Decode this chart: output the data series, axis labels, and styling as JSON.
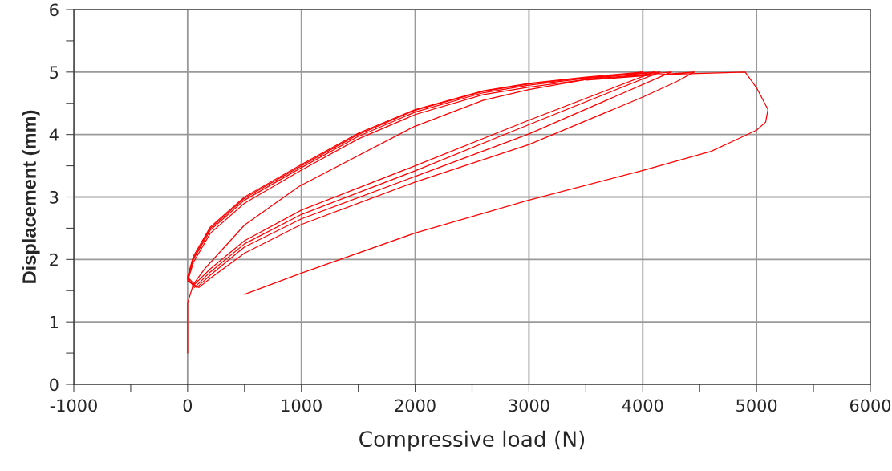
{
  "chart_data": {
    "type": "line",
    "xlabel": "Compressive load (N)",
    "ylabel": "Displacement (mm)",
    "xlim": [
      -1000,
      6000
    ],
    "ylim": [
      0,
      6
    ],
    "xticks": [
      -1000,
      {
        "value": -500,
        "label": null
      },
      0,
      {
        "value": 500,
        "label": null
      },
      1000,
      {
        "value": 1500,
        "label": null
      },
      2000,
      {
        "value": 2500,
        "label": null
      },
      3000,
      {
        "value": 3500,
        "label": null
      },
      4000,
      {
        "value": 4500,
        "label": null
      },
      5000,
      {
        "value": 5500,
        "label": null
      },
      6000
    ],
    "yticks": [
      0,
      {
        "value": 0.5,
        "label": null
      },
      1,
      {
        "value": 1.5,
        "label": null
      },
      2,
      {
        "value": 2.5,
        "label": null
      },
      3,
      {
        "value": 3.5,
        "label": null
      },
      4,
      {
        "value": 4.5,
        "label": null
      },
      5,
      {
        "value": 5.5,
        "label": null
      },
      6
    ],
    "grid": true,
    "marker": "none",
    "line_style": "solid",
    "series": [
      {
        "color": "#ff0000",
        "x": [
          0,
          0,
          50,
          150,
          500,
          980,
          1994,
          2600,
          3000,
          3500,
          4000
        ],
        "values": [
          0.5,
          1.3,
          1.6,
          1.85,
          2.55,
          3.17,
          4.13,
          4.55,
          4.72,
          4.88,
          5.0
        ]
      },
      {
        "color": "#ff0000",
        "x": [
          4000,
          3500,
          3000,
          2600,
          2000,
          1500,
          1000,
          500,
          200,
          50,
          0,
          60,
          200,
          500,
          1000,
          2000,
          3000,
          4100
        ],
        "values": [
          5.0,
          4.92,
          4.82,
          4.7,
          4.4,
          4.02,
          3.52,
          3.0,
          2.52,
          2.05,
          1.72,
          1.6,
          1.85,
          2.3,
          2.79,
          3.5,
          4.23,
          5.0
        ]
      },
      {
        "color": "#ff0000",
        "x": [
          4100,
          3500,
          3000,
          2600,
          2000,
          1500,
          1000,
          500,
          200,
          50,
          0,
          60,
          200,
          500,
          1000,
          2000,
          3000,
          4150
        ],
        "values": [
          5.0,
          4.91,
          4.81,
          4.69,
          4.39,
          4.0,
          3.5,
          2.98,
          2.5,
          2.02,
          1.7,
          1.55,
          1.8,
          2.25,
          2.72,
          3.42,
          4.16,
          5.0
        ]
      },
      {
        "color": "#ff0000",
        "x": [
          4150,
          3500,
          3000,
          2600,
          2000,
          1500,
          1000,
          500,
          200,
          50,
          0,
          80,
          200,
          500,
          1000,
          2000,
          3000,
          4250
        ],
        "values": [
          5.0,
          4.9,
          4.79,
          4.67,
          4.36,
          3.97,
          3.47,
          2.95,
          2.47,
          2.0,
          1.68,
          1.55,
          1.75,
          2.2,
          2.65,
          3.33,
          4.01,
          5.0
        ]
      },
      {
        "color": "#ff0000",
        "x": [
          4250,
          3500,
          3000,
          2600,
          2000,
          1500,
          1000,
          500,
          200,
          50,
          0,
          100,
          200,
          500,
          1000,
          2000,
          3000,
          4000,
          4300,
          4450
        ],
        "values": [
          5.0,
          4.88,
          4.76,
          4.64,
          4.32,
          3.93,
          3.43,
          2.9,
          2.42,
          1.95,
          1.65,
          1.55,
          1.7,
          2.1,
          2.56,
          3.24,
          3.84,
          4.6,
          4.85,
          5.0
        ]
      },
      {
        "color": "#ff0000",
        "x": [
          4450,
          4000,
          3500,
          4000,
          4900,
          5000,
          5100,
          5080,
          5000,
          4800,
          4600,
          3989,
          2980,
          1994,
          1000,
          500
        ],
        "values": [
          5.0,
          4.94,
          4.87,
          4.95,
          5.0,
          4.75,
          4.4,
          4.2,
          4.07,
          3.9,
          3.73,
          3.42,
          2.94,
          2.42,
          1.78,
          1.44
        ]
      }
    ]
  }
}
